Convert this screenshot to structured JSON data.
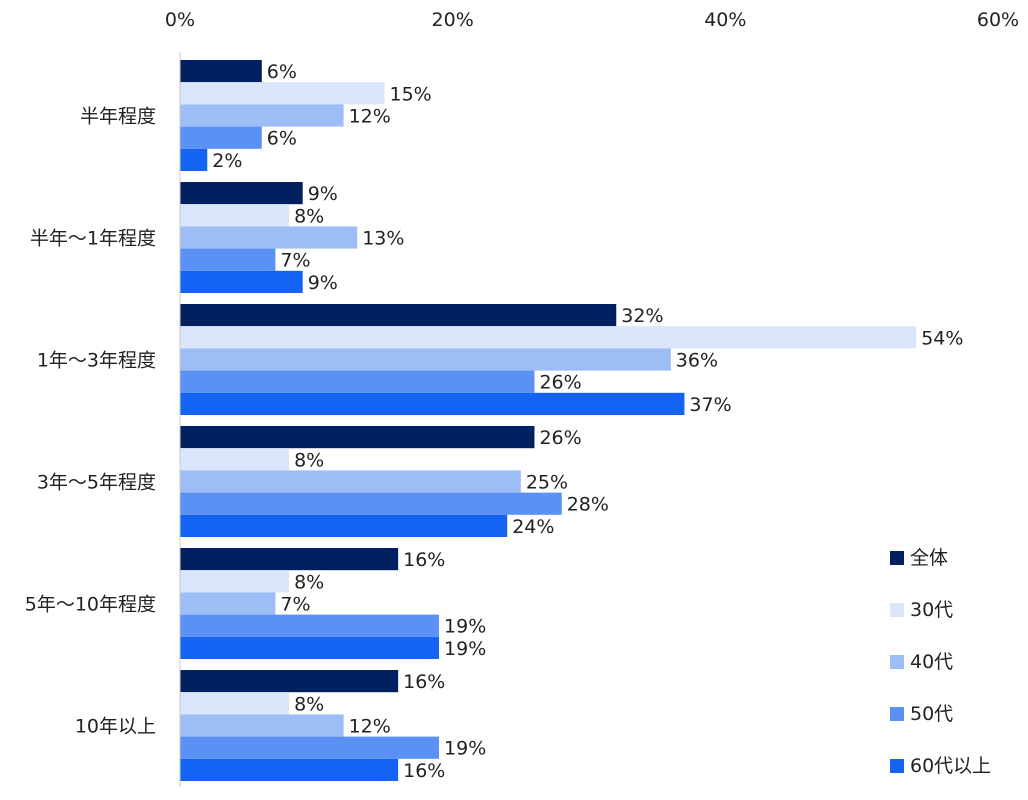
{
  "chart_data": {
    "type": "bar",
    "orientation": "horizontal",
    "categories": [
      "半年程度",
      "半年～1年程度",
      "1年～3年程度",
      "3年～5年程度",
      "5年～10年程度",
      "10年以上"
    ],
    "series": [
      {
        "name": "全体",
        "color": "#002060",
        "values": [
          6,
          9,
          32,
          26,
          16,
          16
        ]
      },
      {
        "name": "30代",
        "color": "#DAE6FA",
        "values": [
          15,
          8,
          54,
          8,
          8,
          8
        ]
      },
      {
        "name": "40代",
        "color": "#9DBDF7",
        "values": [
          12,
          13,
          36,
          25,
          7,
          12
        ]
      },
      {
        "name": "50代",
        "color": "#5B91F4",
        "values": [
          6,
          7,
          26,
          28,
          19,
          19
        ]
      },
      {
        "name": "60代以上",
        "color": "#1563F3",
        "values": [
          2,
          9,
          37,
          24,
          19,
          16
        ]
      }
    ],
    "value_suffix": "%",
    "xlim": [
      0,
      60
    ],
    "xticks": [
      "0%",
      "20%",
      "40%",
      "60%"
    ],
    "xtick_values": [
      0,
      20,
      40,
      60
    ],
    "axis_position": "top",
    "grid": false,
    "legend_position": "bottom-right"
  }
}
